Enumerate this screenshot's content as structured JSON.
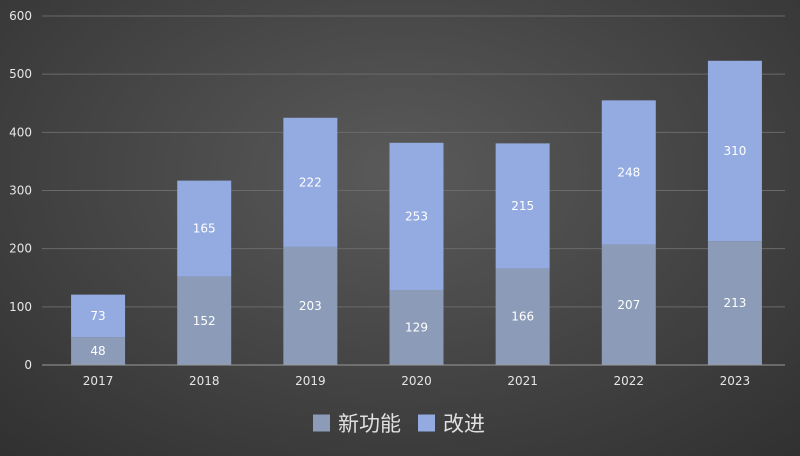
{
  "chart_data": {
    "type": "bar",
    "stacked": true,
    "categories": [
      "2017",
      "2018",
      "2019",
      "2020",
      "2021",
      "2022",
      "2023"
    ],
    "series": [
      {
        "name": "新功能",
        "color": "#8c9cb8",
        "values": [
          48,
          152,
          203,
          129,
          166,
          207,
          213
        ]
      },
      {
        "name": "改进",
        "color": "#93abe0",
        "values": [
          73,
          165,
          222,
          253,
          215,
          248,
          310
        ]
      }
    ],
    "ylim": [
      0,
      600
    ],
    "yticks": [
      0,
      100,
      200,
      300,
      400,
      500,
      600
    ],
    "grid": true,
    "legend": "bottom",
    "data_labels": true
  }
}
